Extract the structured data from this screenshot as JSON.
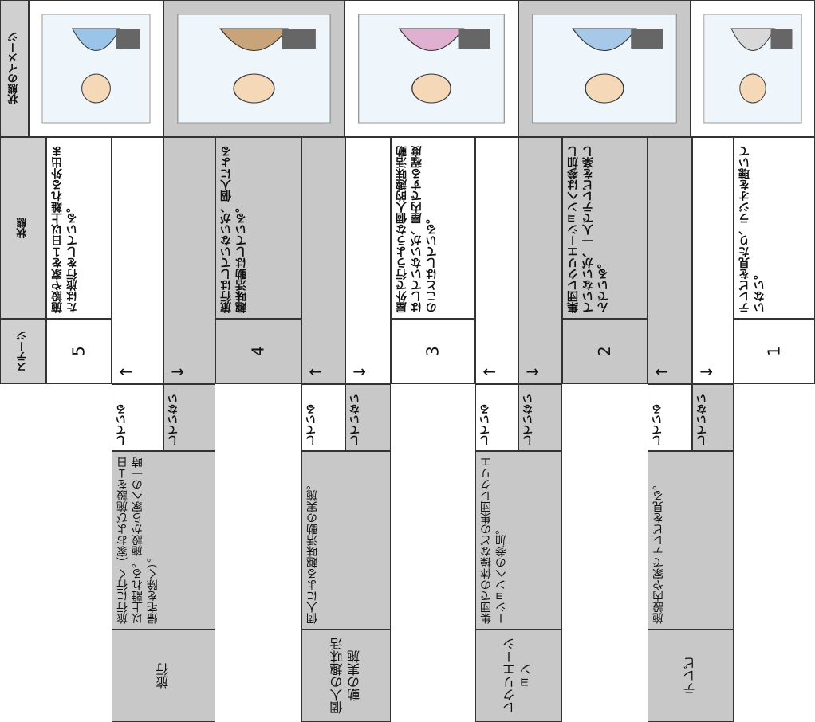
{
  "header": {
    "stage": "ステージ",
    "state": "状態",
    "image": "状態のイメージ"
  },
  "stages": [
    {
      "stage": "5",
      "state": "施設や家を１日以上離れる外出または旅行をしている。"
    },
    {
      "stage": "4",
      "state": "旅行はしていないが、個人による趣味活動はしている。"
    },
    {
      "stage": "3",
      "state": "屋外で行うような個人的趣味活動はしていないが、屋内でする程度のことはしている。"
    },
    {
      "stage": "2",
      "state": "集団レクリエーションへは参加していないが、一人でテレビを楽しんでいる。"
    },
    {
      "stage": "1",
      "state": "テレビを見たり、ラジオを聴いていない。"
    }
  ],
  "transitions": [
    {
      "activity": "旅行",
      "description": "旅行に行く（家および施設を１日以上離れる。施設から家への一時帰宅を除く）。",
      "yes": "している",
      "no": "していない",
      "up": "↑",
      "down": "↓"
    },
    {
      "activity": "個人の趣味活動の実施",
      "description": "個人による趣味活動の実施。",
      "yes": "している",
      "no": "していない",
      "up": "↑",
      "down": "↓"
    },
    {
      "activity": "レクリエーション",
      "description": "集団での体操などの集団レクリエーションへの参加。",
      "yes": "している",
      "no": "していない",
      "up": "↑",
      "down": "↓"
    },
    {
      "activity": "テレビ",
      "description": "施設内や家でテレビを見る。",
      "yes": "している",
      "no": "していない",
      "up": "↑",
      "down": "↓"
    }
  ]
}
